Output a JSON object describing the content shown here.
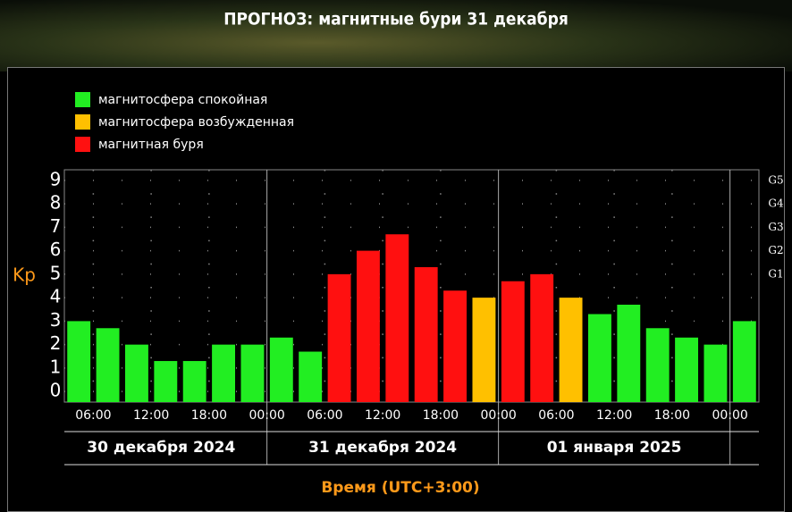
{
  "chart_data": {
    "type": "bar",
    "title": "ПРОГНОЗ: магнитные бури 31 декабря",
    "legend": [
      {
        "name": "магнитосфера спокойная",
        "color": "#22ee22"
      },
      {
        "name": "магнитосфера возбужденная",
        "color": "#ffc000"
      },
      {
        "name": "магнитная буря",
        "color": "#ff1010"
      }
    ],
    "values": [
      3.0,
      2.7,
      2.0,
      1.3,
      1.3,
      2.0,
      2.0,
      2.3,
      1.7,
      5.0,
      6.0,
      6.7,
      5.3,
      4.3,
      4.0,
      4.7,
      5.0,
      4.0,
      3.3,
      3.7,
      2.7,
      2.3,
      2.0,
      3.0
    ],
    "colors": [
      "#22ee22",
      "#22ee22",
      "#22ee22",
      "#22ee22",
      "#22ee22",
      "#22ee22",
      "#22ee22",
      "#22ee22",
      "#22ee22",
      "#ff1010",
      "#ff1010",
      "#ff1010",
      "#ff1010",
      "#ff1010",
      "#ffc000",
      "#ff1010",
      "#ff1010",
      "#ffc000",
      "#22ee22",
      "#22ee22",
      "#22ee22",
      "#22ee22",
      "#22ee22",
      "#22ee22"
    ],
    "xlim": [
      3,
      75
    ],
    "xticks": [
      {
        "value": 6,
        "label": "06:00"
      },
      {
        "value": 12,
        "label": "12:00"
      },
      {
        "value": 18,
        "label": "18:00"
      },
      {
        "value": 24,
        "label": "00:00"
      },
      {
        "value": 30,
        "label": "06:00"
      },
      {
        "value": 36,
        "label": "12:00"
      },
      {
        "value": 42,
        "label": "18:00"
      },
      {
        "value": 48,
        "label": "00:00"
      },
      {
        "value": 54,
        "label": "06:00"
      },
      {
        "value": 60,
        "label": "12:00"
      },
      {
        "value": 66,
        "label": "18:00"
      },
      {
        "value": 72,
        "label": "00:00"
      }
    ],
    "days": [
      "30 декабря 2024",
      "31 декабря 2024",
      "01 января 2025"
    ],
    "ylabel": "Kp",
    "xlabel": "Время (UTC+3:00)",
    "ylim": [
      -0.45,
      9.45
    ],
    "yticks": [
      0,
      1,
      2,
      3,
      4,
      5,
      6,
      7,
      8,
      9
    ],
    "y2ticks": [
      {
        "value": 5,
        "label": "G1"
      },
      {
        "value": 6,
        "label": "G2"
      },
      {
        "value": 7,
        "label": "G3"
      },
      {
        "value": 8,
        "label": "G4"
      },
      {
        "value": 9,
        "label": "G5"
      }
    ],
    "grid": true
  }
}
